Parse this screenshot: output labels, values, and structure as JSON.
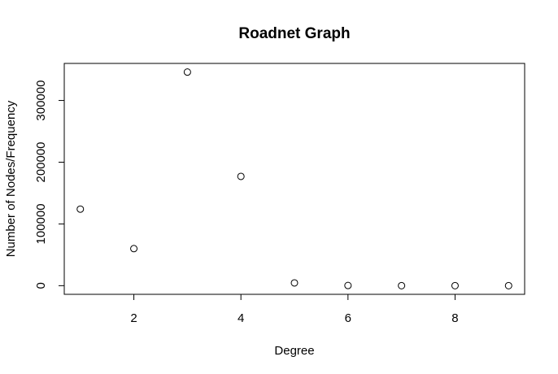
{
  "chart_data": {
    "type": "scatter",
    "title": "Roadnet Graph",
    "xlabel": "Degree",
    "ylabel": "Number of Nodes/Frequency",
    "x": [
      1,
      2,
      3,
      4,
      5,
      6,
      7,
      8,
      9
    ],
    "y": [
      124000,
      60000,
      346000,
      177000,
      4500,
      300,
      30,
      5,
      0
    ],
    "xlim": [
      0.7,
      9.3
    ],
    "ylim": [
      -14000,
      360000
    ],
    "xticks": [
      2,
      4,
      6,
      8
    ],
    "xtick_labels": [
      "2",
      "4",
      "6",
      "8"
    ],
    "yticks": [
      0,
      100000,
      200000,
      300000
    ],
    "ytick_labels": [
      "0",
      "100000",
      "200000",
      "300000"
    ],
    "marker": "open-circle",
    "grid": false,
    "colors": {
      "marker": "#000000",
      "background": "#ffffff"
    }
  }
}
